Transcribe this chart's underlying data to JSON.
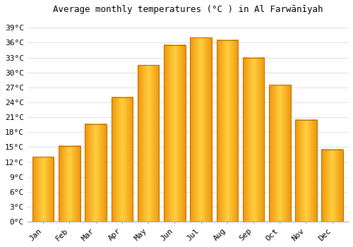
{
  "title": "Average monthly temperatures (°C ) in Al Farwānīyah",
  "months": [
    "Jan",
    "Feb",
    "Mar",
    "Apr",
    "May",
    "Jun",
    "Jul",
    "Aug",
    "Sep",
    "Oct",
    "Nov",
    "Dec"
  ],
  "values": [
    13.0,
    15.2,
    19.6,
    25.0,
    31.5,
    35.5,
    37.0,
    36.5,
    33.0,
    27.5,
    20.5,
    14.5
  ],
  "bar_color_center": "#FFD040",
  "bar_color_edge": "#F0950A",
  "bar_outline_color": "#C07000",
  "background_color": "#FFFFFF",
  "grid_color": "#E0E0E8",
  "ytick_labels": [
    "0°C",
    "3°C",
    "6°C",
    "9°C",
    "12°C",
    "15°C",
    "18°C",
    "21°C",
    "24°C",
    "27°C",
    "30°C",
    "33°C",
    "36°C",
    "39°C"
  ],
  "ytick_values": [
    0,
    3,
    6,
    9,
    12,
    15,
    18,
    21,
    24,
    27,
    30,
    33,
    36,
    39
  ],
  "ylim": [
    0,
    41
  ],
  "title_fontsize": 9,
  "tick_fontsize": 8,
  "bar_width": 0.82,
  "figsize": [
    5.0,
    3.5
  ],
  "dpi": 100
}
